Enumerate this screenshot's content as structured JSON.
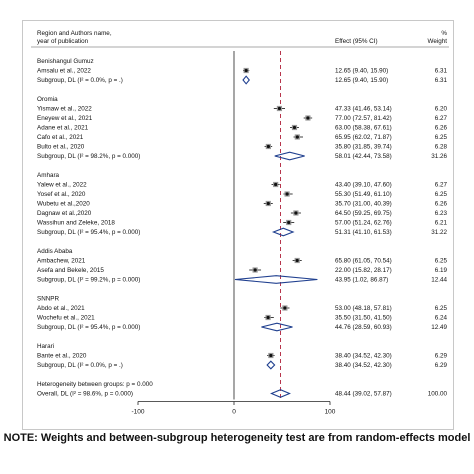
{
  "header": {
    "study_col": "Region and Authors name,",
    "study_col2": "year of publication",
    "effect_col": "Effect (95% CI)",
    "weight_col_1": "%",
    "weight_col_2": "Weight"
  },
  "footnote": "NOTE: Weights and between-subgroup heterogeneity test are from random-effects model",
  "chart_data": {
    "type": "forest",
    "x_ticks": [
      -100,
      0,
      100
    ],
    "x_tick_labels": [
      "-100",
      "0",
      "100"
    ],
    "xlim": [
      -100,
      155
    ],
    "reference_line": 0,
    "overall_dashed_line": 48.44,
    "rows": [
      {
        "kind": "group",
        "label": "Benishangul Gumuz"
      },
      {
        "kind": "study",
        "label": "Amsalu et al., 2022",
        "est": 12.65,
        "lo": 9.4,
        "hi": 15.9,
        "ci": "12.65 (9.40, 15.90)",
        "w": "6.31"
      },
      {
        "kind": "subtotal",
        "label": "Subgroup, DL (I² = 0.0%, p = .)",
        "est": 12.65,
        "lo": 9.4,
        "hi": 15.9,
        "ci": "12.65 (9.40, 15.90)",
        "w": "6.31"
      },
      {
        "kind": "blank"
      },
      {
        "kind": "group",
        "label": "Oromia"
      },
      {
        "kind": "study",
        "label": "Yismaw et al., 2022",
        "est": 47.33,
        "lo": 41.46,
        "hi": 53.14,
        "ci": "47.33 (41.46, 53.14)",
        "w": "6.20"
      },
      {
        "kind": "study",
        "label": "Eneyew et al., 2021",
        "est": 77.0,
        "lo": 72.57,
        "hi": 81.42,
        "ci": "77.00 (72.57, 81.42)",
        "w": "6.27"
      },
      {
        "kind": "study",
        "label": "Adane et al., 2021",
        "est": 63.0,
        "lo": 58.38,
        "hi": 67.61,
        "ci": "63.00 (58.38, 67.61)",
        "w": "6.26"
      },
      {
        "kind": "study",
        "label": "Cafo et al., 2021",
        "est": 65.95,
        "lo": 62.02,
        "hi": 71.87,
        "ci": "65.95 (62.02, 71.87)",
        "w": "6.25"
      },
      {
        "kind": "study",
        "label": "Bulto et al., 2020",
        "est": 35.8,
        "lo": 31.85,
        "hi": 39.74,
        "ci": "35.80 (31.85, 39.74)",
        "w": "6.28"
      },
      {
        "kind": "subtotal",
        "label": "Subgroup, DL (I² = 98.2%, p = 0.000)",
        "est": 58.01,
        "lo": 42.44,
        "hi": 73.58,
        "ci": "58.01 (42.44, 73.58)",
        "w": "31.26"
      },
      {
        "kind": "blank"
      },
      {
        "kind": "group",
        "label": "Amhara"
      },
      {
        "kind": "study",
        "label": "Yalew et al., 2022",
        "est": 43.4,
        "lo": 39.1,
        "hi": 47.6,
        "ci": "43.40 (39.10, 47.60)",
        "w": "6.27"
      },
      {
        "kind": "study",
        "label": "Yosef et al., 2020",
        "est": 55.3,
        "lo": 51.49,
        "hi": 61.1,
        "ci": "55.30 (51.49, 61.10)",
        "w": "6.25"
      },
      {
        "kind": "study",
        "label": "Wubetu et al.,2020",
        "est": 35.7,
        "lo": 31.0,
        "hi": 40.39,
        "ci": "35.70 (31.00, 40.39)",
        "w": "6.26"
      },
      {
        "kind": "study",
        "label": "Dagnaw et al.,2020",
        "est": 64.5,
        "lo": 59.25,
        "hi": 69.75,
        "ci": "64.50 (59.25, 69.75)",
        "w": "6.23"
      },
      {
        "kind": "study",
        "label": "Wassihun and Zeleke, 2018",
        "est": 57.0,
        "lo": 51.24,
        "hi": 62.76,
        "ci": "57.00 (51.24, 62.76)",
        "w": "6.21"
      },
      {
        "kind": "subtotal",
        "label": "Subgroup, DL (I² = 95.4%, p = 0.000)",
        "est": 51.31,
        "lo": 41.1,
        "hi": 61.53,
        "ci": "51.31 (41.10, 61.53)",
        "w": "31.22"
      },
      {
        "kind": "blank"
      },
      {
        "kind": "group",
        "label": "Addis Ababa"
      },
      {
        "kind": "study",
        "label": "Ambachew, 2021",
        "est": 65.8,
        "lo": 61.05,
        "hi": 70.54,
        "ci": "65.80 (61.05, 70.54)",
        "w": "6.25"
      },
      {
        "kind": "study",
        "label": "Asefa and Bekele, 2015",
        "est": 22.0,
        "lo": 15.82,
        "hi": 28.17,
        "ci": "22.00 (15.82, 28.17)",
        "w": "6.19"
      },
      {
        "kind": "subtotal",
        "label": "Subgroup, DL (I² = 99.2%, p = 0.000)",
        "est": 43.95,
        "lo": 1.02,
        "hi": 86.87,
        "ci": "43.95 (1.02, 86.87)",
        "w": "12.44"
      },
      {
        "kind": "blank"
      },
      {
        "kind": "group",
        "label": "SNNPR"
      },
      {
        "kind": "study",
        "label": "Abdo et al., 2021",
        "est": 53.0,
        "lo": 48.18,
        "hi": 57.81,
        "ci": "53.00 (48.18, 57.81)",
        "w": "6.25"
      },
      {
        "kind": "study",
        "label": "Wochefu et al., 2021",
        "est": 35.5,
        "lo": 31.5,
        "hi": 41.5,
        "ci": "35.50 (31.50, 41.50)",
        "w": "6.24"
      },
      {
        "kind": "subtotal",
        "label": "Subgroup, DL (I² = 95.4%, p = 0.000)",
        "est": 44.76,
        "lo": 28.59,
        "hi": 60.93,
        "ci": "44.76 (28.59, 60.93)",
        "w": "12.49"
      },
      {
        "kind": "blank"
      },
      {
        "kind": "group",
        "label": "Harari"
      },
      {
        "kind": "study",
        "label": "Bante et al., 2020",
        "est": 38.4,
        "lo": 34.52,
        "hi": 42.3,
        "ci": "38.40 (34.52, 42.30)",
        "w": "6.29"
      },
      {
        "kind": "subtotal",
        "label": "Subgroup, DL (I² = 0.0%, p = .)",
        "est": 38.4,
        "lo": 34.52,
        "hi": 42.3,
        "ci": "38.40 (34.52, 42.30)",
        "w": "6.29"
      },
      {
        "kind": "blank"
      },
      {
        "kind": "note",
        "label": "Heterogeneity between groups: p = 0.000"
      },
      {
        "kind": "overall",
        "label": "Overall, DL (I² = 98.6%, p = 0.000)",
        "est": 48.44,
        "lo": 39.02,
        "hi": 57.87,
        "ci": "48.44 (39.02, 57.87)",
        "w": "100.00"
      }
    ]
  }
}
